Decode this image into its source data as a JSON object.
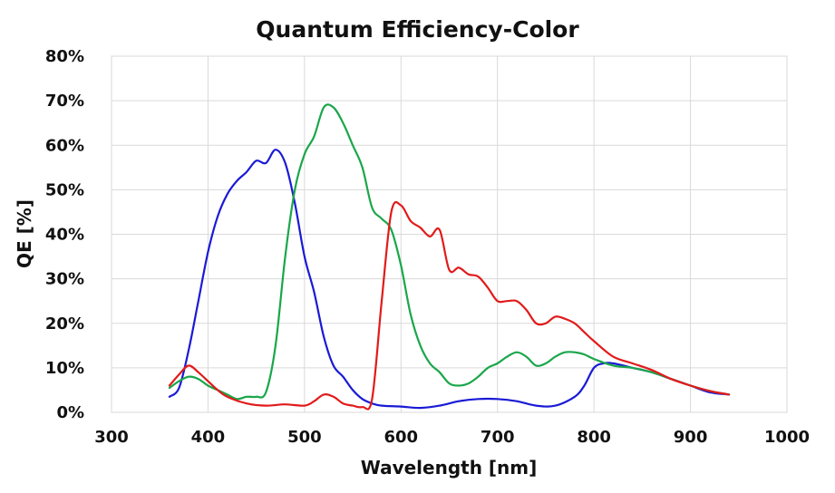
{
  "chart_data": {
    "type": "line",
    "title": "Quantum Efficiency-Color",
    "xlabel": "Wavelength [nm]",
    "ylabel": "QE [%]",
    "xlim": [
      300,
      1000
    ],
    "ylim": [
      0,
      80
    ],
    "xticks": [
      300,
      400,
      500,
      600,
      700,
      800,
      900,
      1000
    ],
    "xtick_labels": [
      "300",
      "400",
      "500",
      "600",
      "700",
      "800",
      "900",
      "1000"
    ],
    "yticks": [
      0,
      10,
      20,
      30,
      40,
      50,
      60,
      70,
      80
    ],
    "ytick_labels": [
      "0%",
      "10%",
      "20%",
      "30%",
      "40%",
      "50%",
      "60%",
      "70%",
      "80%"
    ],
    "grid": true,
    "legend": "none",
    "series": [
      {
        "name": "Blue",
        "color": "#1a1ad6",
        "x": [
          360,
          370,
          380,
          390,
          400,
          410,
          420,
          430,
          440,
          450,
          460,
          470,
          480,
          490,
          500,
          510,
          520,
          530,
          540,
          550,
          560,
          570,
          580,
          600,
          620,
          640,
          660,
          680,
          700,
          720,
          740,
          760,
          780,
          790,
          800,
          810,
          820,
          840,
          860,
          880,
          900,
          920,
          940
        ],
        "y": [
          3.5,
          5.5,
          14,
          25,
          36,
          44,
          49,
          52,
          54,
          56.5,
          56,
          59,
          56,
          47,
          35,
          27,
          17,
          10.5,
          8,
          5,
          3,
          2,
          1.5,
          1.3,
          1,
          1.5,
          2.5,
          3,
          3,
          2.5,
          1.5,
          1.5,
          3.5,
          6,
          10,
          11,
          11,
          10,
          9,
          7.5,
          6,
          4.5,
          4
        ]
      },
      {
        "name": "Green",
        "color": "#1aa64a",
        "x": [
          360,
          370,
          380,
          390,
          400,
          410,
          420,
          430,
          440,
          450,
          460,
          470,
          480,
          490,
          500,
          510,
          520,
          530,
          540,
          550,
          560,
          570,
          580,
          590,
          600,
          610,
          620,
          630,
          640,
          650,
          660,
          670,
          680,
          690,
          700,
          710,
          720,
          730,
          740,
          750,
          760,
          770,
          780,
          790,
          800,
          820,
          840,
          860,
          880,
          900,
          920,
          940
        ],
        "y": [
          5.5,
          7,
          8,
          7.5,
          6,
          5,
          4,
          3,
          3.5,
          3.5,
          4.5,
          15,
          35,
          50,
          58,
          62,
          68.5,
          68.5,
          65,
          60,
          55,
          46,
          43.5,
          41,
          33,
          22,
          15,
          11,
          9,
          6.5,
          6,
          6.5,
          8,
          10,
          11,
          12.5,
          13.5,
          12.5,
          10.5,
          11,
          12.5,
          13.5,
          13.5,
          13,
          12,
          10.5,
          10,
          9,
          7.5,
          6,
          4.8,
          4
        ]
      },
      {
        "name": "Red",
        "color": "#e21a1a",
        "x": [
          360,
          370,
          380,
          390,
          400,
          410,
          420,
          440,
          460,
          480,
          500,
          510,
          520,
          530,
          540,
          550,
          560,
          570,
          580,
          590,
          600,
          610,
          620,
          630,
          640,
          650,
          660,
          670,
          680,
          690,
          700,
          710,
          720,
          730,
          740,
          750,
          760,
          770,
          780,
          790,
          800,
          820,
          840,
          860,
          880,
          900,
          920,
          940
        ],
        "y": [
          6,
          8.5,
          10.5,
          9,
          7,
          5,
          3.5,
          2,
          1.5,
          1.8,
          1.5,
          2.5,
          4,
          3.5,
          2,
          1.5,
          1.2,
          3,
          25,
          45,
          46.5,
          43,
          41.5,
          39.5,
          41,
          32,
          32.5,
          31,
          30.5,
          28,
          25,
          25,
          25,
          23,
          20,
          20,
          21.5,
          21,
          20,
          18,
          16,
          12.5,
          11,
          9.5,
          7.5,
          6,
          4.8,
          4
        ]
      }
    ]
  }
}
